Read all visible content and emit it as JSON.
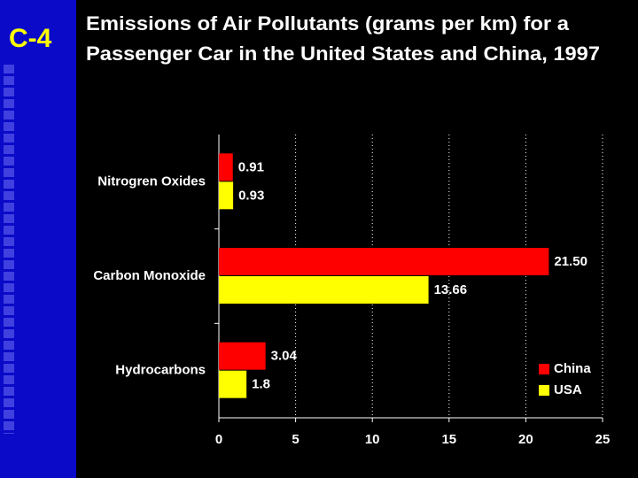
{
  "slide_label": "C-4",
  "chart_data": {
    "type": "hbar",
    "title": [
      "Emissions of Air Pollutants (grams per km) for a",
      "Passenger Car in the United States and China, 1997"
    ],
    "categories": [
      "Nitrogren Oxides",
      "Carbon Monoxide",
      "Hydrocarbons"
    ],
    "series": [
      {
        "name": "China",
        "color": "#ff0000",
        "values": [
          0.91,
          21.5,
          3.04
        ],
        "value_labels": [
          "0.91",
          "21.50",
          "3.04"
        ]
      },
      {
        "name": "USA",
        "color": "#ffff00",
        "values": [
          0.93,
          13.66,
          1.8
        ],
        "value_labels": [
          "0.93",
          "13.66",
          "1.8"
        ]
      }
    ],
    "xlim": [
      0,
      25
    ],
    "xticks": [
      0,
      5,
      10,
      15,
      20,
      25
    ],
    "grid": true,
    "legend": "lower right"
  }
}
